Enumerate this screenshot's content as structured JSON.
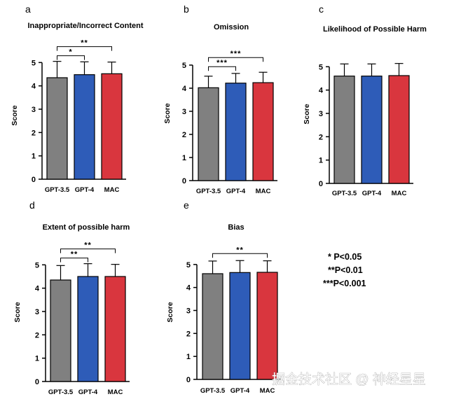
{
  "chart_data": [
    {
      "letter": "a",
      "type": "bar",
      "title": "Inappropriate/Incorrect Content",
      "ylabel": "Score",
      "categories": [
        "GPT-3.5",
        "GPT-4",
        "MAC"
      ],
      "values": [
        4.35,
        4.48,
        4.52
      ],
      "errors": [
        0.7,
        0.55,
        0.5
      ],
      "ylim": [
        0,
        6
      ],
      "yticks": [
        0,
        1,
        2,
        3,
        4,
        5
      ],
      "colors": [
        "#808080",
        "#2e5cb8",
        "#d9363e"
      ],
      "significance": [
        {
          "from": 0,
          "to": 1,
          "label": "*"
        },
        {
          "from": 0,
          "to": 2,
          "label": "**"
        }
      ]
    },
    {
      "letter": "b",
      "type": "bar",
      "title": "Omission",
      "ylabel": "Score",
      "categories": [
        "GPT-3.5",
        "GPT-4",
        "MAC"
      ],
      "values": [
        4.02,
        4.22,
        4.24
      ],
      "errors": [
        0.5,
        0.42,
        0.45
      ],
      "ylim": [
        0,
        6
      ],
      "yticks": [
        0,
        1,
        2,
        3,
        4,
        5
      ],
      "colors": [
        "#808080",
        "#2e5cb8",
        "#d9363e"
      ],
      "significance": [
        {
          "from": 0,
          "to": 1,
          "label": "***"
        },
        {
          "from": 0,
          "to": 2,
          "label": "***"
        }
      ]
    },
    {
      "letter": "c",
      "type": "bar",
      "title": "Likelihood of Possible Harm",
      "ylabel": "Score",
      "categories": [
        "GPT-3.5",
        "GPT-4",
        "MAC"
      ],
      "values": [
        4.6,
        4.6,
        4.62
      ],
      "errors": [
        0.52,
        0.52,
        0.52
      ],
      "ylim": [
        0,
        6
      ],
      "yticks": [
        0,
        1,
        2,
        3,
        4,
        5
      ],
      "colors": [
        "#808080",
        "#2e5cb8",
        "#d9363e"
      ],
      "significance": []
    },
    {
      "letter": "d",
      "type": "bar",
      "title": "Extent of possible harm",
      "ylabel": "Score",
      "categories": [
        "GPT-3.5",
        "GPT-4",
        "MAC"
      ],
      "values": [
        4.35,
        4.5,
        4.5
      ],
      "errors": [
        0.62,
        0.55,
        0.52
      ],
      "ylim": [
        0,
        6
      ],
      "yticks": [
        0,
        1,
        2,
        3,
        4,
        5
      ],
      "colors": [
        "#808080",
        "#2e5cb8",
        "#d9363e"
      ],
      "significance": [
        {
          "from": 0,
          "to": 1,
          "label": "**"
        },
        {
          "from": 0,
          "to": 2,
          "label": "**"
        }
      ]
    },
    {
      "letter": "e",
      "type": "bar",
      "title": "Bias",
      "ylabel": "Score",
      "categories": [
        "GPT-3.5",
        "GPT-4",
        "MAC"
      ],
      "values": [
        4.6,
        4.65,
        4.66
      ],
      "errors": [
        0.55,
        0.52,
        0.5
      ],
      "ylim": [
        0,
        6
      ],
      "yticks": [
        0,
        1,
        2,
        3,
        4,
        5
      ],
      "colors": [
        "#808080",
        "#2e5cb8",
        "#d9363e"
      ],
      "significance": [
        {
          "from": 0,
          "to": 2,
          "label": "**"
        }
      ]
    }
  ],
  "significance_legend": [
    "* P<0.05",
    "**P<0.01",
    "***P<0.001"
  ],
  "watermark": "掘金技术社区 @ 神经星星"
}
